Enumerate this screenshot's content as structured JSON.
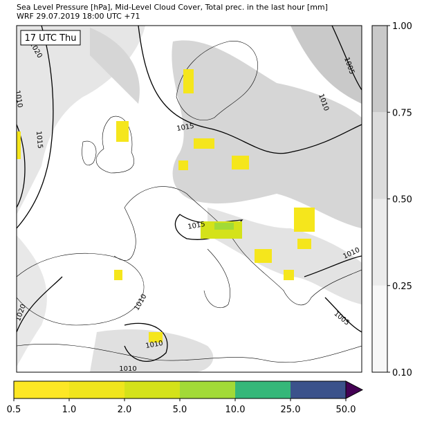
{
  "header": {
    "title": "Sea Level Pressure [hPa], Mid-Level Cloud Cover, Total prec. in the last hour [mm]",
    "subtitle": "WRF 29.07.2019 18:00 UTC +71"
  },
  "map": {
    "time_label": "17 UTC Thu",
    "contour_labels": [
      "1020",
      "1010",
      "1015",
      "1015",
      "1005",
      "1010",
      "1015",
      "1010",
      "1005",
      "1020",
      "1010",
      "1010",
      "1010"
    ]
  },
  "cloud_colorbar": {
    "ticks": [
      {
        "value": 0.1,
        "label": "0.10"
      },
      {
        "value": 0.25,
        "label": "0.25"
      },
      {
        "value": 0.5,
        "label": "0.50"
      },
      {
        "value": 0.75,
        "label": "0.75"
      },
      {
        "value": 1,
        "label": "1.00"
      }
    ],
    "colors": [
      "#f7f7f7",
      "#ebebeb",
      "#dcdcdc",
      "#c9c9c9"
    ]
  },
  "precip_colorbar": {
    "ticks": [
      0.5,
      {
        "value": 1,
        "label": "1.0"
      },
      {
        "value": 2,
        "label": "2.0"
      },
      {
        "value": 5,
        "label": "5.0"
      },
      {
        "value": 10,
        "label": "10.0"
      },
      {
        "value": 25,
        "label": "25.0"
      },
      {
        "value": 50,
        "label": "50.0"
      }
    ],
    "colors": [
      "#fde725",
      "#f0e51d",
      "#d4e21a",
      "#a2da37",
      "#35b779",
      "#3b528b"
    ],
    "extend_color": "#440154"
  }
}
